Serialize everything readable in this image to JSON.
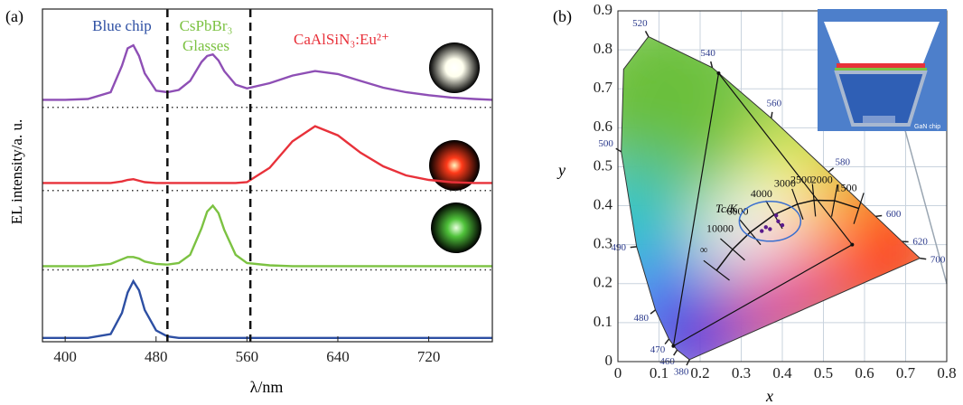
{
  "chart_data": [
    {
      "type": "line",
      "panel": "(a)",
      "xlabel": "λ/nm",
      "ylabel": "EL intensity/a. u.",
      "annotations": [
        "Blue chip",
        "CsPbBr₃",
        "Glasses",
        "CaAlSiN₃:Eu²⁺"
      ],
      "xlim": [
        380,
        776
      ],
      "xticks": [
        400,
        480,
        560,
        640,
        720
      ],
      "ylim": [
        0,
        4.4
      ],
      "vlines": [
        490,
        563
      ],
      "baselines": [
        0.95,
        2.0,
        3.1
      ],
      "x": [
        380,
        400,
        420,
        440,
        450,
        455,
        460,
        465,
        470,
        480,
        490,
        500,
        510,
        520,
        525,
        530,
        535,
        540,
        550,
        560,
        580,
        600,
        620,
        640,
        660,
        680,
        700,
        720,
        740,
        760,
        776
      ],
      "series": [
        {
          "color": "#2d4fa3",
          "values": [
            0.05,
            0.05,
            0.05,
            0.1,
            0.38,
            0.65,
            0.8,
            0.68,
            0.42,
            0.15,
            0.07,
            0.05,
            0.05,
            0.05,
            0.05,
            0.05,
            0.05,
            0.05,
            0.05,
            0.05,
            0.05,
            0.05,
            0.05,
            0.05,
            0.05,
            0.05,
            0.05,
            0.05,
            0.05,
            0.05,
            0.05
          ]
        },
        {
          "color": "#7cc242",
          "values": [
            1.0,
            1.0,
            1.0,
            1.03,
            1.09,
            1.12,
            1.12,
            1.1,
            1.06,
            1.03,
            1.02,
            1.04,
            1.15,
            1.5,
            1.72,
            1.8,
            1.7,
            1.48,
            1.15,
            1.04,
            1.01,
            1.0,
            1.0,
            1.0,
            1.0,
            1.0,
            1.0,
            1.0,
            1.0,
            1.0,
            1.0
          ]
        },
        {
          "color": "#e8313a",
          "values": [
            2.1,
            2.1,
            2.1,
            2.1,
            2.12,
            2.14,
            2.15,
            2.13,
            2.11,
            2.1,
            2.1,
            2.1,
            2.1,
            2.1,
            2.1,
            2.1,
            2.1,
            2.1,
            2.1,
            2.11,
            2.3,
            2.65,
            2.85,
            2.73,
            2.5,
            2.32,
            2.2,
            2.14,
            2.11,
            2.1,
            2.1
          ]
        },
        {
          "color": "#8e4fb5",
          "values": [
            3.2,
            3.2,
            3.21,
            3.3,
            3.65,
            3.88,
            3.92,
            3.78,
            3.55,
            3.32,
            3.3,
            3.33,
            3.45,
            3.7,
            3.78,
            3.8,
            3.72,
            3.58,
            3.4,
            3.35,
            3.42,
            3.52,
            3.58,
            3.54,
            3.45,
            3.36,
            3.3,
            3.26,
            3.23,
            3.21,
            3.2
          ]
        }
      ]
    },
    {
      "type": "cie",
      "panel": "(b)",
      "xlabel": "x",
      "ylabel": "y",
      "xlim": [
        0,
        0.8
      ],
      "ylim": [
        0,
        0.9
      ],
      "xticks": [
        0,
        0.1,
        0.2,
        0.3,
        0.4,
        0.5,
        0.6,
        0.7,
        0.8
      ],
      "yticks": [
        0,
        0.1,
        0.2,
        0.3,
        0.4,
        0.5,
        0.6,
        0.7,
        0.8,
        0.9
      ],
      "grid": true,
      "locus": {
        "x": [
          0.1741,
          0.144,
          0.1241,
          0.0913,
          0.0454,
          0.0082,
          0.0139,
          0.0743,
          0.2296,
          0.3731,
          0.5125,
          0.627,
          0.6915,
          0.7347
        ],
        "y": [
          0.005,
          0.0297,
          0.0578,
          0.1327,
          0.295,
          0.5384,
          0.7502,
          0.8338,
          0.7543,
          0.6245,
          0.4866,
          0.3725,
          0.3083,
          0.2653
        ]
      },
      "wavelength_labels": {
        "text": [
          "380",
          "460",
          "470",
          "480",
          "490",
          "500",
          "520",
          "540",
          "560",
          "580",
          "600",
          "620",
          "700"
        ],
        "x": [
          0.1741,
          0.144,
          0.1241,
          0.0913,
          0.0454,
          0.0082,
          0.0743,
          0.2296,
          0.3731,
          0.5125,
          0.627,
          0.6915,
          0.7347
        ],
        "y": [
          0.005,
          0.0297,
          0.0578,
          0.1327,
          0.295,
          0.5384,
          0.8338,
          0.7543,
          0.6245,
          0.4866,
          0.3725,
          0.3083,
          0.2653
        ]
      },
      "gamut": {
        "x": [
          0.245,
          0.57,
          0.135
        ],
        "y": [
          0.74,
          0.3,
          0.04
        ]
      },
      "cct_title": "Tc/K",
      "cct": {
        "text": [
          "1500",
          "2000",
          "2500",
          "3000",
          "4000",
          "6000",
          "10000",
          "∞"
        ],
        "x": [
          0.586,
          0.527,
          0.477,
          0.437,
          0.38,
          0.322,
          0.279,
          0.24
        ],
        "y": [
          0.393,
          0.413,
          0.414,
          0.404,
          0.377,
          0.332,
          0.288,
          0.234
        ]
      },
      "points": {
        "x": [
          0.385,
          0.36,
          0.35,
          0.37,
          0.39,
          0.4
        ],
        "y": [
          0.375,
          0.345,
          0.335,
          0.34,
          0.36,
          0.35
        ]
      },
      "inset_label": "GaN chip"
    }
  ]
}
